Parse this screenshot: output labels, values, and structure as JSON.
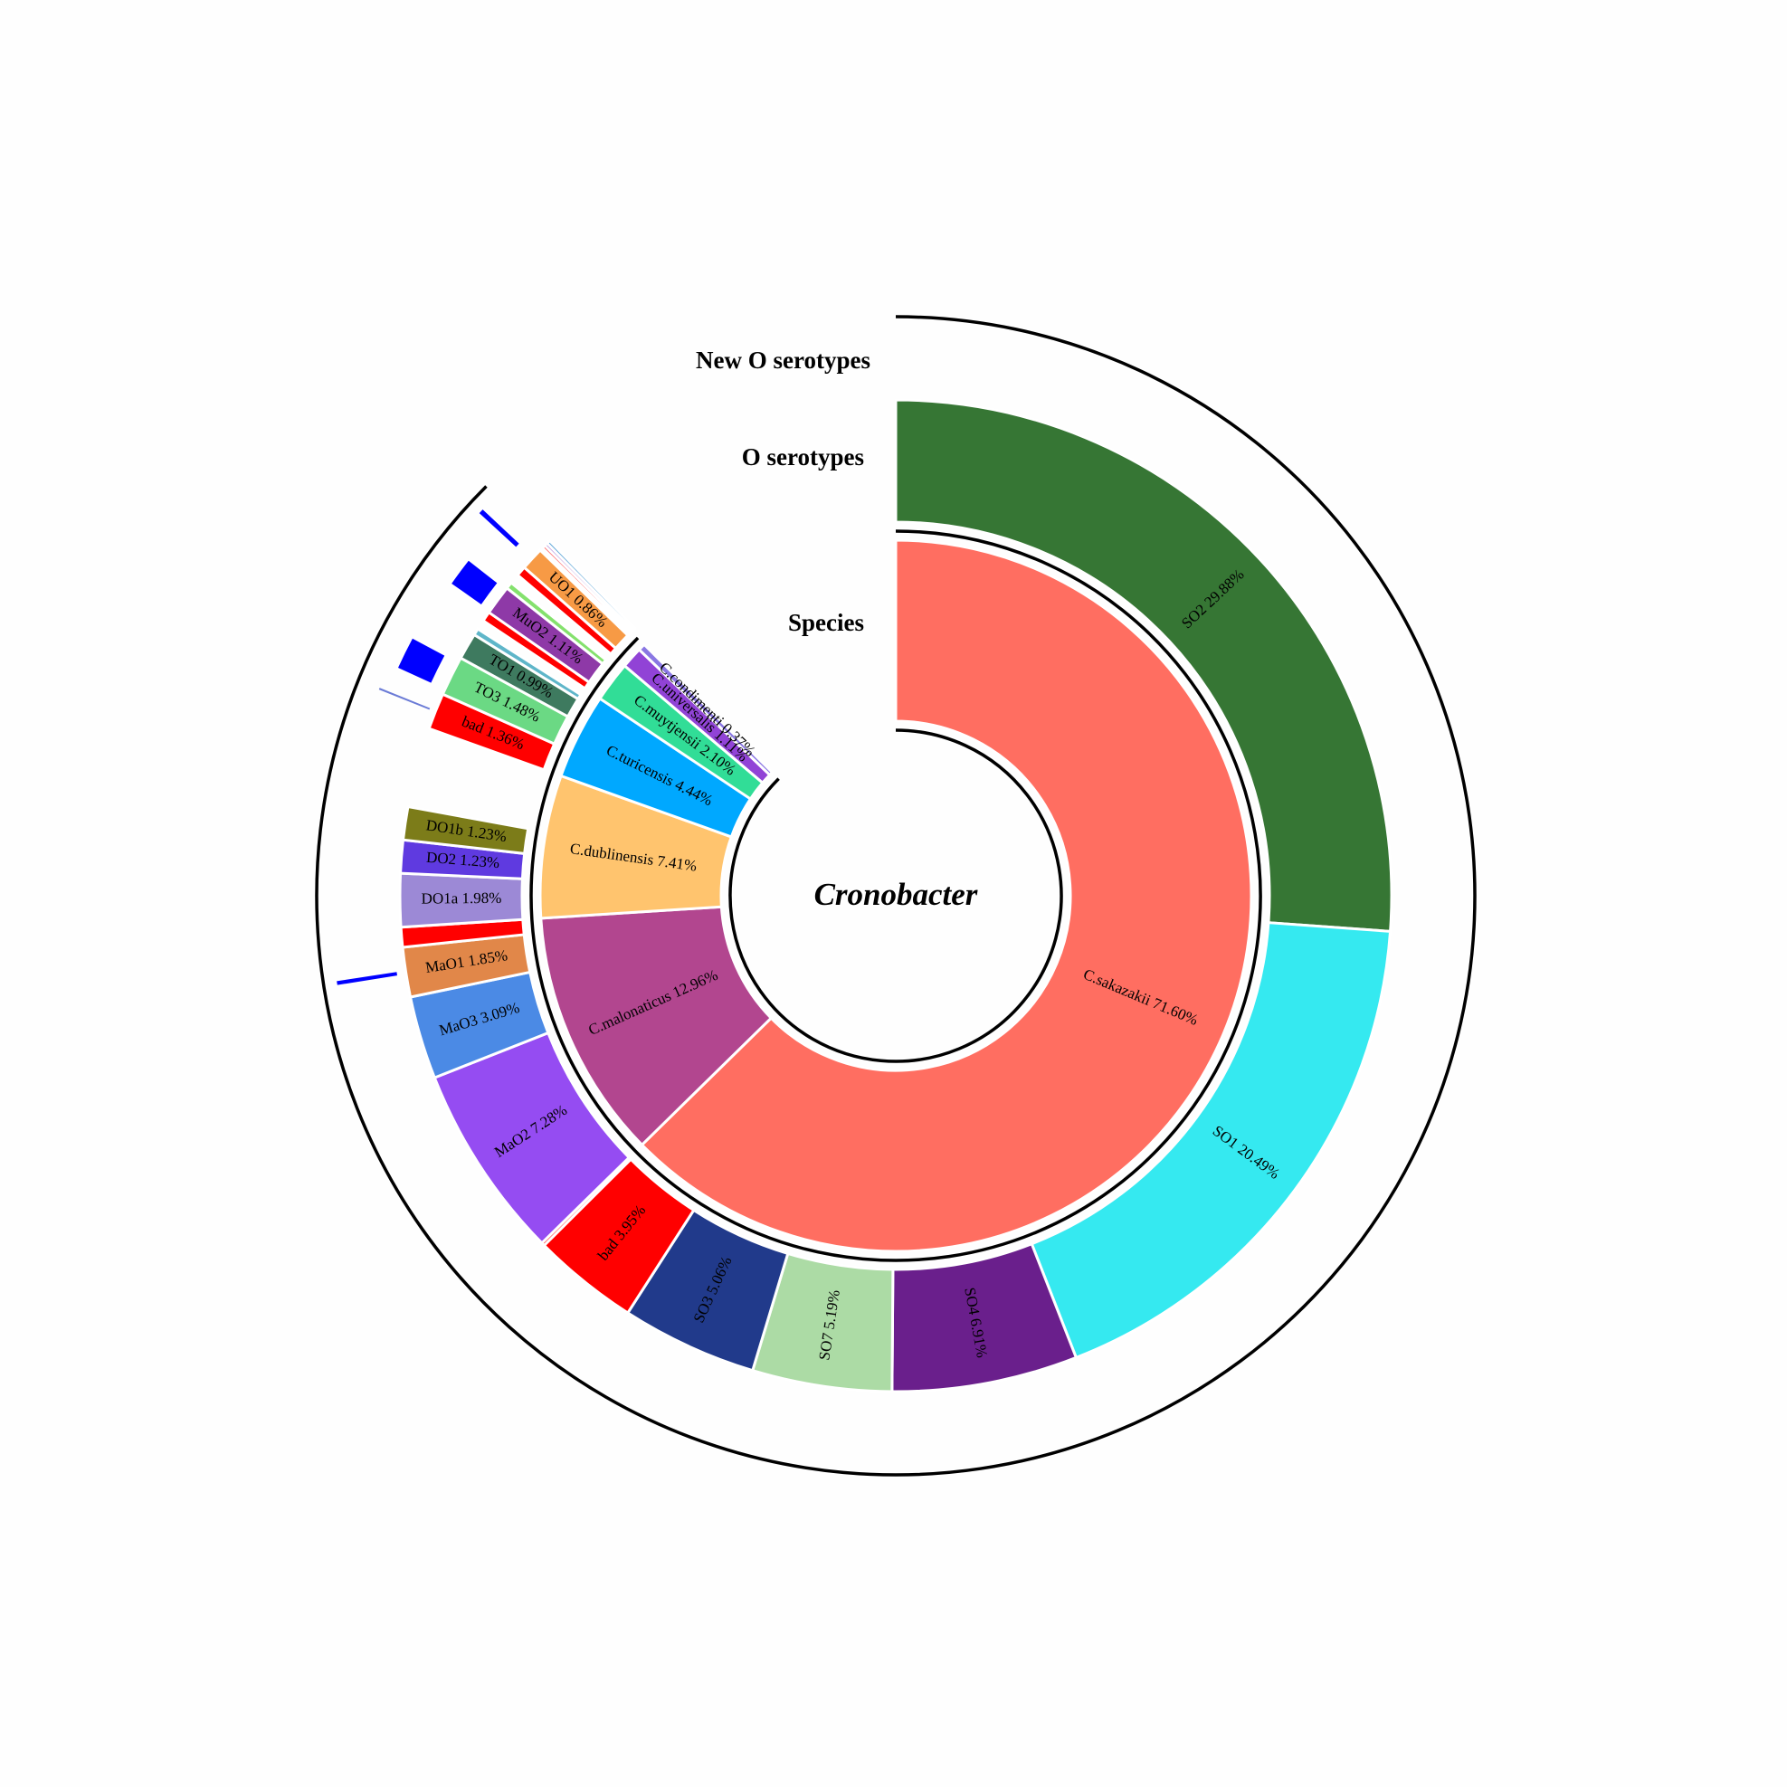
{
  "chart_data": {
    "type": "sunburst",
    "title": "Cronobacter",
    "ring_titles": [
      "Species",
      "O serotypes",
      "New O serotypes"
    ],
    "species": [
      {
        "label": "C.sakazakii",
        "value": 71.6,
        "color": "#ff6e61"
      },
      {
        "label": "C.malonaticus",
        "value": 12.96,
        "color": "#b2468f"
      },
      {
        "label": "C.dublinensis",
        "value": 7.41,
        "color": "#ffc46e"
      },
      {
        "label": "C.turicensis",
        "value": 4.44,
        "color": "#00a8ff"
      },
      {
        "label": "C.muytjensii",
        "value": 2.1,
        "color": "#31dd97"
      },
      {
        "label": "C.universalis",
        "value": 1.11,
        "color": "#9143d6"
      },
      {
        "label": "C.condimenti",
        "value": 0.37,
        "color": "#8a77e3"
      }
    ],
    "species_label_text": {
      "C.sakazakii": "C.sakazakii  71.60%",
      "C.malonaticus": "C.malonaticus  12.96%",
      "C.dublinensis": "C.dublinensis  7.41%",
      "C.turicensis": "C.turicensis  4.44%",
      "C.muytjensii": "C.muytjensii  2.10%",
      "C.universalis": "C.universalis  1.11%",
      "C.condimenti": "C.condimenti  0.37%"
    },
    "o_serotypes": [
      {
        "species": "C.sakazakii",
        "label": "SO2  29.88%",
        "value": 29.88,
        "color": "#367634"
      },
      {
        "species": "C.sakazakii",
        "label": "SO1  20.49%",
        "value": 20.49,
        "color": "#35e9f0"
      },
      {
        "species": "C.sakazakii",
        "label": "SO4  6.91%",
        "value": 6.91,
        "color": "#6a1f8c"
      },
      {
        "species": "C.sakazakii",
        "label": "SO7  5.19%",
        "value": 5.19,
        "color": "#acdba5"
      },
      {
        "species": "C.sakazakii",
        "label": "SO3  5.06%",
        "value": 5.06,
        "color": "#213a8b"
      },
      {
        "species": "C.sakazakii",
        "label": "bad  3.95%",
        "value": 3.95,
        "color": "#ff0000"
      },
      {
        "species": "C.sakazakii",
        "label": "",
        "value": 0.12,
        "color": "#ff0000"
      },
      {
        "species": "C.malonaticus",
        "label": "MaO2  7.28%",
        "value": 7.28,
        "color": "#954cf2"
      },
      {
        "species": "C.malonaticus",
        "label": "MaO3  3.09%",
        "value": 3.09,
        "color": "#4b8ae5"
      },
      {
        "species": "C.malonaticus",
        "label": "MaO1  1.85%",
        "value": 1.85,
        "color": "#e18749"
      },
      {
        "species": "C.malonaticus",
        "label": "",
        "value": 0.74,
        "color": "#ff0000"
      },
      {
        "species": "C.dublinensis",
        "label": "DO1a  1.98%",
        "value": 1.98,
        "color": "#9c89d6"
      },
      {
        "species": "C.dublinensis",
        "label": "DO2  1.23%",
        "value": 1.23,
        "color": "#5f3ae0"
      },
      {
        "species": "C.dublinensis",
        "label": "DO1b  1.23%",
        "value": 1.23,
        "color": "#7c7c19"
      },
      {
        "species": "C.dublinensis",
        "label": "",
        "value": 2.97,
        "color": "none"
      },
      {
        "species": "C.turicensis",
        "label": "bad  1.36%",
        "value": 1.36,
        "color": "#ff0000"
      },
      {
        "species": "C.turicensis",
        "label": "TO3  1.48%",
        "value": 1.48,
        "color": "#6bd984"
      },
      {
        "species": "C.turicensis",
        "label": "TO1  0.99%",
        "value": 0.99,
        "color": "#3e7a5f"
      },
      {
        "species": "C.turicensis",
        "label": "",
        "value": 0.25,
        "color": "#5fb6c9"
      },
      {
        "species": "C.turicensis",
        "label": "",
        "value": 0.36,
        "color": "none"
      },
      {
        "species": "C.muytjensii",
        "label": "",
        "value": 0.37,
        "color": "#ff0000"
      },
      {
        "species": "C.muytjensii",
        "label": "MuO2  1.11%",
        "value": 1.11,
        "color": "#8e39a7"
      },
      {
        "species": "C.muytjensii",
        "label": "",
        "value": 0.25,
        "color": "#84e16d"
      },
      {
        "species": "C.muytjensii",
        "label": "",
        "value": 0.37,
        "color": "none"
      },
      {
        "species": "C.universalis",
        "label": "",
        "value": 0.37,
        "color": "#ff0000"
      },
      {
        "species": "C.universalis",
        "label": "UO1  0.86%",
        "value": 0.86,
        "color": "#f79a45"
      },
      {
        "species": "C.universalis",
        "label": "",
        "value": 0.12,
        "color": "none"
      },
      {
        "species": "C.condimenti",
        "label": "",
        "value": 0.12,
        "color": "#ff0000"
      },
      {
        "species": "C.condimenti",
        "label": "",
        "value": 0.12,
        "color": "#9b6bd0"
      },
      {
        "species": "C.condimenti",
        "label": "",
        "value": 0.13,
        "color": "#5aa3d6"
      }
    ],
    "new_o_serotype_marks": [
      {
        "near": "MuO2",
        "color": "#0000ff"
      },
      {
        "near": "TO3",
        "color": "#0000ff"
      },
      {
        "near": "UO1",
        "color": "#0000ff"
      },
      {
        "near": "MaO1",
        "color": "#0000ff"
      },
      {
        "near": "bad",
        "color": "#6b7bd6"
      }
    ]
  }
}
